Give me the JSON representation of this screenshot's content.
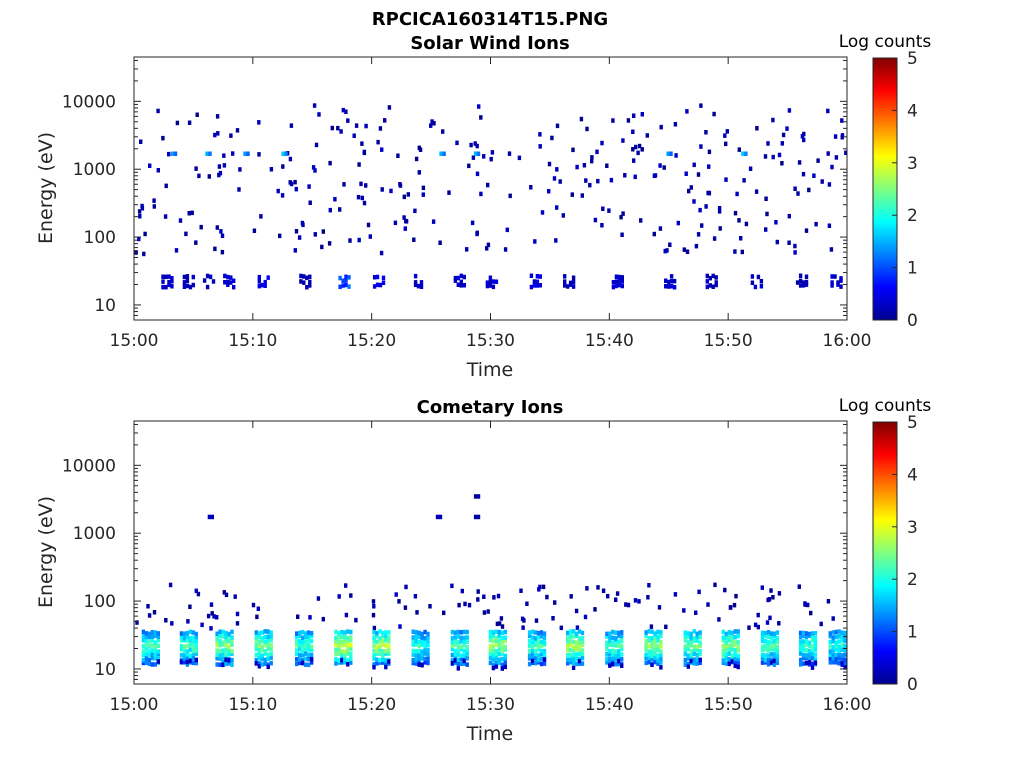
{
  "figure_title": "RPCICA160314T15.PNG",
  "chart_data": [
    {
      "type": "heatmap",
      "title": "Solar Wind Ions",
      "xlabel": "Time",
      "ylabel": "Energy (eV)",
      "xlim": [
        "15:00",
        "16:00"
      ],
      "ylim": [
        6,
        45000
      ],
      "yscale": "log",
      "x_ticks": [
        "15:00",
        "15:10",
        "15:20",
        "15:30",
        "15:40",
        "15:50",
        "16:00"
      ],
      "y_ticks": [
        "10",
        "100",
        "1000",
        "10000"
      ],
      "colorbar": {
        "label": "Log counts",
        "min": 0,
        "max": 5,
        "ticks": [
          "0",
          "1",
          "2",
          "3",
          "4",
          "5"
        ]
      },
      "pattern": "sparse scattered counts (log counts ~0-1) between 50 and 10000 eV; periodic low-energy bursts near 15-30 eV",
      "bursts": [
        {
          "t": 2.8,
          "e": 24,
          "v": 0.4
        },
        {
          "t": 4.6,
          "e": 24,
          "v": 0.3
        },
        {
          "t": 6.3,
          "e": 24,
          "v": 0.3
        },
        {
          "t": 8.0,
          "e": 24,
          "v": 0.4
        },
        {
          "t": 10.9,
          "e": 24,
          "v": 0.5
        },
        {
          "t": 14.4,
          "e": 24,
          "v": 0.3
        },
        {
          "t": 17.7,
          "e": 24,
          "v": 1.2
        },
        {
          "t": 20.6,
          "e": 24,
          "v": 0.5
        },
        {
          "t": 23.8,
          "e": 24,
          "v": 0.4
        },
        {
          "t": 27.4,
          "e": 24,
          "v": 0.4
        },
        {
          "t": 30.1,
          "e": 24,
          "v": 0.4
        },
        {
          "t": 33.8,
          "e": 24,
          "v": 0.5
        },
        {
          "t": 36.6,
          "e": 24,
          "v": 0.3
        },
        {
          "t": 40.7,
          "e": 24,
          "v": 0.4
        },
        {
          "t": 45.1,
          "e": 24,
          "v": 0.4
        },
        {
          "t": 48.6,
          "e": 24,
          "v": 0.3
        },
        {
          "t": 52.4,
          "e": 24,
          "v": 0.4
        },
        {
          "t": 56.2,
          "e": 24,
          "v": 0.3
        },
        {
          "t": 59.1,
          "e": 24,
          "v": 0.4
        }
      ],
      "hotspots": [
        {
          "t": 3.1,
          "e": 1700,
          "v": 1.4
        },
        {
          "t": 6.0,
          "e": 1700,
          "v": 1.5
        },
        {
          "t": 9.2,
          "e": 1700,
          "v": 1.4
        },
        {
          "t": 12.4,
          "e": 1700,
          "v": 1.6
        },
        {
          "t": 25.7,
          "e": 1700,
          "v": 1.5
        },
        {
          "t": 28.6,
          "e": 1700,
          "v": 1.5
        },
        {
          "t": 44.8,
          "e": 1700,
          "v": 1.4
        },
        {
          "t": 51.1,
          "e": 1700,
          "v": 1.6
        }
      ]
    },
    {
      "type": "heatmap",
      "title": "Cometary Ions",
      "xlabel": "Time",
      "ylabel": "Energy (eV)",
      "xlim": [
        "15:00",
        "16:00"
      ],
      "ylim": [
        6,
        45000
      ],
      "yscale": "log",
      "x_ticks": [
        "15:00",
        "15:10",
        "15:20",
        "15:30",
        "15:40",
        "15:50",
        "16:00"
      ],
      "y_ticks": [
        "10",
        "100",
        "1000",
        "10000"
      ],
      "colorbar": {
        "label": "Log counts",
        "min": 0,
        "max": 5,
        "ticks": [
          "0",
          "1",
          "2",
          "3",
          "4",
          "5"
        ]
      },
      "pattern": "periodic bursts of cometary ions between ~10 and ~40 eV with peak log counts ~2-3; sparse counts up to ~200 eV",
      "bursts": [
        {
          "t": 1.4,
          "e": 22,
          "v": 2.0
        },
        {
          "t": 4.6,
          "e": 22,
          "v": 2.0
        },
        {
          "t": 7.6,
          "e": 22,
          "v": 2.3
        },
        {
          "t": 10.9,
          "e": 22,
          "v": 2.2
        },
        {
          "t": 14.3,
          "e": 22,
          "v": 2.0
        },
        {
          "t": 17.6,
          "e": 22,
          "v": 2.6
        },
        {
          "t": 20.8,
          "e": 22,
          "v": 2.4
        },
        {
          "t": 24.1,
          "e": 22,
          "v": 1.9
        },
        {
          "t": 27.4,
          "e": 22,
          "v": 2.0
        },
        {
          "t": 30.6,
          "e": 22,
          "v": 2.4
        },
        {
          "t": 33.9,
          "e": 22,
          "v": 2.0
        },
        {
          "t": 37.1,
          "e": 22,
          "v": 2.5
        },
        {
          "t": 40.4,
          "e": 22,
          "v": 2.0
        },
        {
          "t": 43.7,
          "e": 22,
          "v": 2.3
        },
        {
          "t": 47.0,
          "e": 22,
          "v": 2.2
        },
        {
          "t": 50.2,
          "e": 22,
          "v": 2.3
        },
        {
          "t": 53.5,
          "e": 22,
          "v": 2.1
        },
        {
          "t": 56.7,
          "e": 22,
          "v": 2.0
        },
        {
          "t": 59.2,
          "e": 22,
          "v": 1.8
        }
      ],
      "hotspots": [
        {
          "t": 6.2,
          "e": 1750,
          "v": 0.3
        },
        {
          "t": 25.4,
          "e": 1750,
          "v": 0.3
        },
        {
          "t": 28.6,
          "e": 1750,
          "v": 0.2
        },
        {
          "t": 28.6,
          "e": 3500,
          "v": 0.2
        }
      ]
    }
  ]
}
